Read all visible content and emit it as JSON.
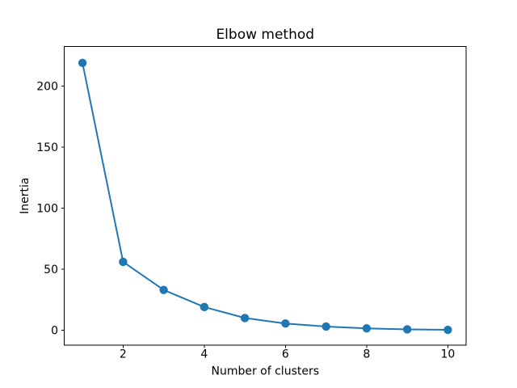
{
  "figure": {
    "background": "#ffffff"
  },
  "chart_data": {
    "type": "line",
    "title": "Elbow method",
    "xlabel": "Number of clusters",
    "ylabel": "Inertia",
    "x": [
      1,
      2,
      3,
      4,
      5,
      6,
      7,
      8,
      9,
      10
    ],
    "y": [
      219,
      56,
      33,
      19,
      10,
      5.5,
      3,
      1.5,
      0.7,
      0.3
    ],
    "x_ticks": [
      2,
      4,
      6,
      8,
      10
    ],
    "y_ticks": [
      0,
      50,
      100,
      150,
      200
    ],
    "xlim": [
      0.55,
      10.45
    ],
    "ylim": [
      -12.25,
      232.45
    ],
    "grid": false,
    "legend": null,
    "line_color": "#1f77b4",
    "marker": "o",
    "axis_color": "#000000"
  }
}
